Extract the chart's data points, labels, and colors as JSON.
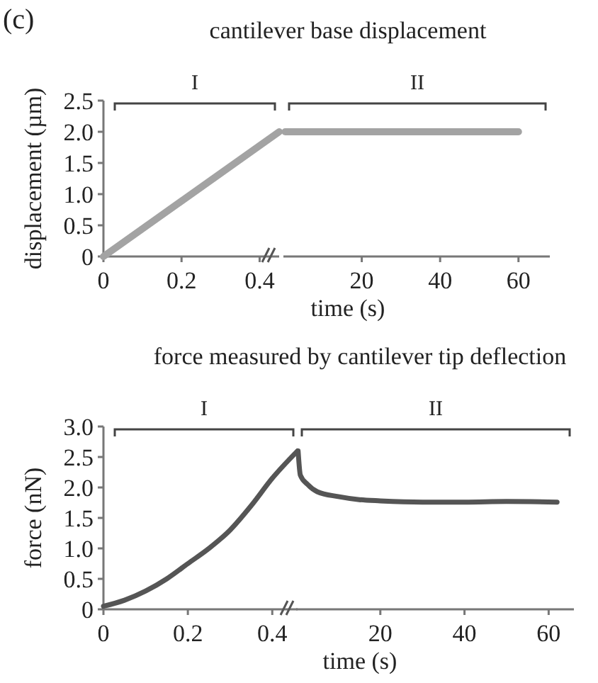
{
  "chart_data": [
    {
      "type": "line",
      "title": "cantilever base displacement",
      "ylabel": "displacement (µm)",
      "annotations": [
        "(c)",
        "I"
      ],
      "xlim": [
        0,
        0.45
      ],
      "xticks": [
        0,
        0.2,
        0.4
      ],
      "ylim": [
        0,
        2.5
      ],
      "yticks": [
        0,
        0.5,
        {
          "value": 1,
          "label": "1.0"
        },
        1.5,
        {
          "value": 2,
          "label": "2.0"
        },
        2.5
      ],
      "grid": false,
      "x": [
        0,
        0.45
      ],
      "series": [
        {
          "color": "#a3a3a3",
          "values": [
            0,
            2.0
          ]
        }
      ]
    },
    {
      "type": "line",
      "xlabel": "time (s)",
      "annotations": [
        "II"
      ],
      "xlim": [
        0,
        68
      ],
      "xticks": [
        20,
        40,
        60
      ],
      "ylim": [
        0,
        2.5
      ],
      "tick_labels": "x",
      "grid": false,
      "x": [
        0.45,
        60
      ],
      "series": [
        {
          "color": "#a3a3a3",
          "values": [
            2.0,
            2.0
          ]
        }
      ]
    },
    {
      "type": "line",
      "title": "force measured by cantilever tip deflection",
      "ylabel": "force (nN)",
      "annotations": [
        "I"
      ],
      "xlim": [
        0,
        0.46
      ],
      "xticks": [
        0,
        0.2,
        0.4
      ],
      "ylim": [
        0,
        3.0
      ],
      "yticks": [
        0,
        0.5,
        {
          "value": 1,
          "label": "1.0"
        },
        1.5,
        {
          "value": 2,
          "label": "2.0"
        },
        2.5,
        {
          "value": 3,
          "label": "3.0"
        }
      ],
      "grid": false,
      "x": [
        0,
        0.05,
        0.1,
        0.15,
        0.2,
        0.25,
        0.3,
        0.35,
        0.4,
        0.46
      ],
      "series": [
        {
          "color": "#555555",
          "values": [
            0.05,
            0.15,
            0.3,
            0.5,
            0.75,
            1.0,
            1.3,
            1.7,
            2.15,
            2.6
          ]
        }
      ]
    },
    {
      "type": "line",
      "xlabel": "time (s)",
      "annotations": [
        "II"
      ],
      "xlim": [
        0,
        66
      ],
      "xticks": [
        20,
        40,
        60
      ],
      "ylim": [
        0,
        3.0
      ],
      "tick_labels": "x",
      "grid": false,
      "x": [
        0.46,
        1,
        2.7,
        5,
        10,
        15,
        20,
        30,
        40,
        50,
        62
      ],
      "series": [
        {
          "color": "#555555",
          "values": [
            2.6,
            2.2,
            2.05,
            1.93,
            1.85,
            1.8,
            1.78,
            1.76,
            1.76,
            1.77,
            1.76
          ]
        }
      ]
    }
  ]
}
